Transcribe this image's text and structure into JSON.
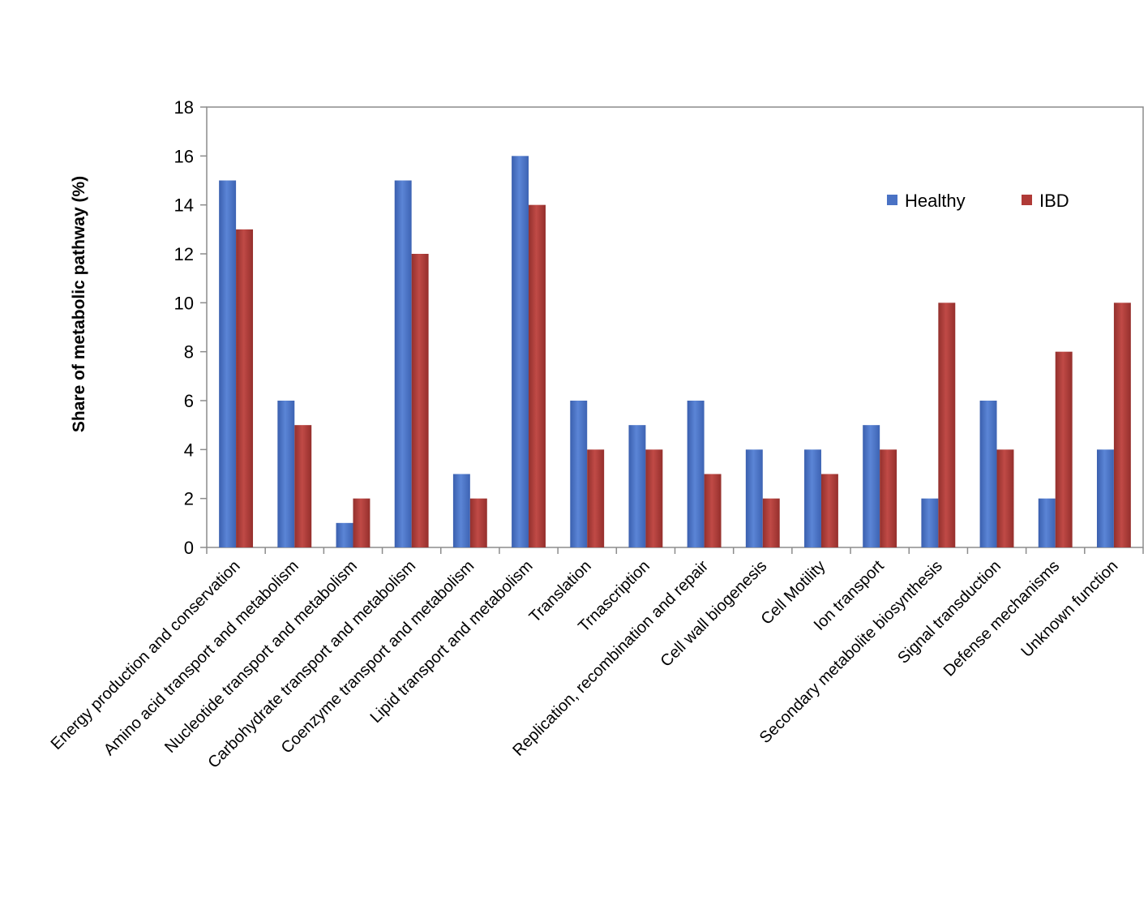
{
  "chart_data": {
    "type": "bar",
    "title": "",
    "xlabel": "",
    "ylabel": "Share of metabolic pathway (%)",
    "ylim": [
      0,
      18
    ],
    "yticks": [
      0,
      2,
      4,
      6,
      8,
      10,
      12,
      14,
      16,
      18
    ],
    "grid": false,
    "legend_position": "top-right",
    "categories": [
      "Energy production and conservation",
      "Amino acid transport and metabolism",
      "Nucleotide transport and metabolism",
      "Carbohydrate transport and metabolism",
      "Coenzyme transport and metabolism",
      "Lipid transport and metabolism",
      "Translation",
      "Trnascription",
      "Replication, recombination and repair",
      "Cell wall biogenesis",
      "Cell Motility",
      "Ion transport",
      "Secondary metabolite biosynthesis",
      "Signal transduction",
      "Defense mechanisms",
      "Unknown function"
    ],
    "series": [
      {
        "name": "Healthy",
        "color": "#4a72c4",
        "values": [
          15,
          6,
          1,
          15,
          3,
          16,
          6,
          5,
          6,
          4,
          4,
          5,
          2,
          6,
          2,
          4
        ]
      },
      {
        "name": "IBD",
        "color": "#b03a37",
        "values": [
          13,
          5,
          2,
          12,
          2,
          14,
          4,
          4,
          3,
          2,
          3,
          4,
          10,
          4,
          8,
          10
        ]
      }
    ]
  }
}
